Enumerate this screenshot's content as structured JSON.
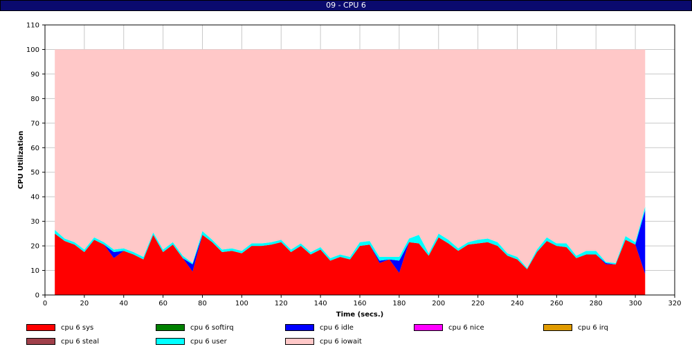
{
  "window": {
    "title": "09 - CPU 6"
  },
  "chart_data": {
    "type": "area",
    "stacked": true,
    "xlabel": "Time (secs.)",
    "ylabel": "CPU Utilization",
    "xlim": [
      0,
      320
    ],
    "ylim": [
      0,
      110
    ],
    "xticks": [
      0,
      20,
      40,
      60,
      80,
      100,
      120,
      140,
      160,
      180,
      200,
      220,
      240,
      260,
      280,
      300,
      320
    ],
    "yticks": [
      0,
      10,
      20,
      30,
      40,
      50,
      60,
      70,
      80,
      90,
      100,
      110
    ],
    "grid": true,
    "legend_position": "bottom",
    "x": [
      5,
      10,
      15,
      20,
      25,
      30,
      35,
      40,
      45,
      50,
      55,
      60,
      65,
      70,
      75,
      80,
      85,
      90,
      95,
      100,
      105,
      110,
      115,
      120,
      125,
      130,
      135,
      140,
      145,
      150,
      155,
      160,
      165,
      170,
      175,
      180,
      185,
      190,
      195,
      200,
      205,
      210,
      215,
      220,
      225,
      230,
      235,
      240,
      245,
      250,
      255,
      260,
      265,
      270,
      275,
      280,
      285,
      290,
      295,
      300,
      305
    ],
    "series": [
      {
        "name": "cpu 6 sys",
        "color": "#ff0000",
        "values": [
          25,
          22,
          20.5,
          17.5,
          22.5,
          20.5,
          15,
          18,
          16.5,
          14.5,
          24.5,
          17.5,
          20.5,
          15,
          9.5,
          24.5,
          21.5,
          17.5,
          18,
          17,
          20,
          20,
          20.5,
          21.5,
          17.5,
          20,
          16.5,
          18.5,
          14,
          15.5,
          14.5,
          20,
          20.5,
          13,
          14.5,
          9,
          21.5,
          21,
          16,
          23.5,
          21,
          18,
          20.5,
          21,
          21.5,
          20,
          16,
          14.5,
          10.5,
          17.5,
          22,
          20,
          19.5,
          15,
          16.5,
          16.5,
          12.5,
          12.5,
          22.5,
          20.5,
          8.5
        ]
      },
      {
        "name": "cpu 6 softirq",
        "color": "#008000",
        "values": [
          0,
          0,
          0,
          0,
          0,
          0,
          0,
          0,
          0,
          0,
          0,
          0,
          0,
          0,
          0,
          0,
          0,
          0,
          0,
          0,
          0,
          0,
          0,
          0,
          0,
          0,
          0,
          0,
          0,
          0,
          0,
          0,
          0,
          0,
          0,
          0,
          0,
          0,
          0,
          0,
          0,
          0,
          0,
          0,
          0,
          0,
          0,
          0,
          0,
          0,
          0,
          0,
          0,
          0,
          0,
          0,
          0,
          0,
          0,
          0,
          0
        ]
      },
      {
        "name": "cpu 6 idle",
        "color": "#0000ff",
        "values": [
          0,
          0,
          0,
          0,
          0,
          0,
          2.5,
          0,
          0,
          0,
          0,
          0,
          0,
          0,
          3,
          0,
          0,
          0,
          0,
          0,
          0,
          0,
          0,
          0,
          0,
          0,
          0,
          0,
          0,
          0,
          0,
          0,
          0,
          1,
          0,
          5,
          0,
          0,
          0,
          0,
          0,
          0,
          0,
          0,
          0,
          0,
          0,
          0,
          0,
          0,
          0,
          0,
          0,
          0,
          0,
          0,
          0.5,
          0,
          0,
          0,
          26
        ]
      },
      {
        "name": "cpu 6 nice",
        "color": "#ff00ff",
        "values": [
          0,
          0,
          0,
          0,
          0,
          0,
          0,
          0,
          0,
          0,
          0,
          0,
          0,
          0,
          0,
          0,
          0,
          0,
          0,
          0,
          0,
          0,
          0,
          0,
          0,
          0,
          0,
          0,
          0,
          0,
          0,
          0,
          0,
          0,
          0,
          0,
          0,
          0,
          0,
          0,
          0,
          0,
          0,
          0,
          0,
          0,
          0,
          0,
          0,
          0,
          0,
          0,
          0,
          0,
          0,
          0,
          0,
          0,
          0,
          0,
          0
        ]
      },
      {
        "name": "cpu 6 irq",
        "color": "#e09b00",
        "values": [
          0,
          0,
          0,
          0,
          0,
          0,
          0,
          0,
          0,
          0,
          0,
          0,
          0,
          0,
          0,
          0,
          0,
          0,
          0,
          0,
          0,
          0,
          0,
          0,
          0,
          0,
          0,
          0,
          0,
          0,
          0,
          0,
          0,
          0,
          0,
          0,
          0,
          0,
          0,
          0,
          0,
          0,
          0,
          0,
          0,
          0,
          0,
          0,
          0,
          0,
          0,
          0,
          0,
          0,
          0,
          0,
          0,
          0,
          0,
          0,
          0
        ]
      },
      {
        "name": "cpu 6 steal",
        "color": "#a0404a",
        "values": [
          0,
          0,
          0,
          0,
          0,
          0,
          0,
          0,
          0,
          0,
          0,
          0,
          0,
          0,
          0,
          0,
          0,
          0,
          0,
          0,
          0,
          0,
          0,
          0,
          0,
          0,
          0,
          0,
          0,
          0,
          0,
          0,
          0,
          0,
          0,
          0,
          0,
          0,
          0,
          0,
          0,
          0,
          0,
          0,
          0,
          0,
          0,
          0,
          0,
          0,
          0,
          0,
          0,
          0,
          0,
          0,
          0,
          0,
          0,
          0,
          0
        ]
      },
      {
        "name": "cpu 6 user",
        "color": "#00ffff",
        "values": [
          1.5,
          1,
          1,
          1,
          1,
          1,
          1,
          1,
          1,
          1,
          1,
          1,
          1,
          1,
          0.5,
          1.5,
          1,
          1,
          1,
          1,
          1,
          1,
          1,
          1,
          1,
          1,
          1,
          1,
          1,
          1,
          1,
          1.5,
          1.5,
          1.5,
          1,
          1.5,
          1.5,
          3.5,
          1,
          1.5,
          1.5,
          1,
          1,
          1.5,
          1.5,
          1.5,
          1,
          1,
          0.5,
          1,
          1.5,
          1,
          1.5,
          1,
          1.5,
          1.5,
          0.5,
          0.5,
          1.5,
          1,
          1.5
        ]
      },
      {
        "name": "cpu 6 iowait",
        "color": "#ffc8c8",
        "values": [
          73.5,
          77,
          78.5,
          81.5,
          76.5,
          78.5,
          81.5,
          81,
          82.5,
          84.5,
          74.5,
          81.5,
          78.5,
          84,
          87,
          74,
          77.5,
          81.5,
          81,
          82,
          79,
          79,
          78.5,
          77.5,
          81.5,
          79,
          82.5,
          80.5,
          85,
          83.5,
          84.5,
          78.5,
          78,
          84.5,
          84.5,
          84.5,
          77,
          75.5,
          83,
          75,
          77.5,
          81,
          78.5,
          77.5,
          77,
          78.5,
          83,
          84.5,
          89,
          81.5,
          76.5,
          79,
          79,
          84,
          82,
          82,
          86.5,
          87,
          76,
          78.5,
          64
        ]
      }
    ]
  }
}
